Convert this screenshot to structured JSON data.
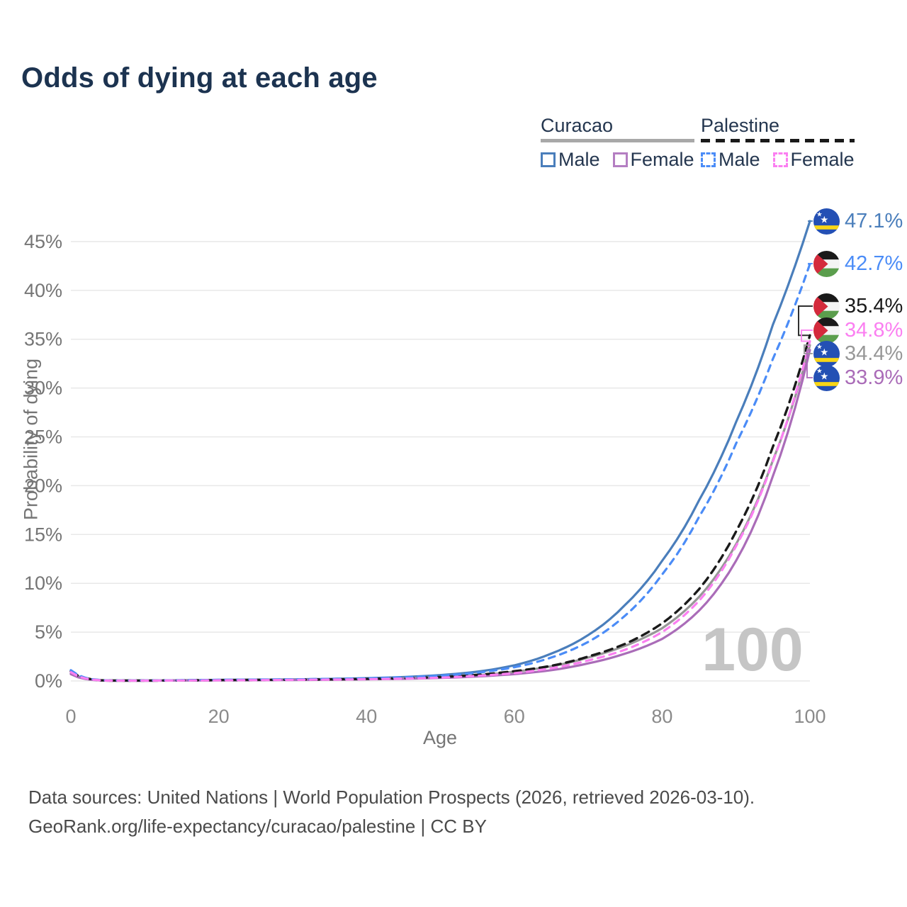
{
  "title": "Odds of dying at each age",
  "legend": {
    "groups": [
      {
        "title": "Curacao",
        "line_style": "solid",
        "line_color": "#a8a8a8",
        "items": [
          {
            "label": "Male",
            "color": "#4a7ebb",
            "dashed": false
          },
          {
            "label": "Female",
            "color": "#b47ec2",
            "dashed": false
          }
        ]
      },
      {
        "title": "Palestine",
        "line_style": "dashed",
        "line_color": "#1a1a1a",
        "items": [
          {
            "label": "Male",
            "color": "#4b8cf7",
            "dashed": true
          },
          {
            "label": "Female",
            "color": "#fb7ff1",
            "dashed": true
          }
        ]
      }
    ]
  },
  "chart_data": {
    "type": "line",
    "title": "Odds of dying at each age",
    "xlabel": "Age",
    "ylabel": "Probability of dying",
    "xlim": [
      0,
      100
    ],
    "ylim": [
      0,
      47.5
    ],
    "xticks": [
      0,
      20,
      40,
      60,
      80,
      100
    ],
    "yticks_percent": [
      0,
      5,
      10,
      15,
      20,
      25,
      30,
      35,
      40,
      45
    ],
    "grid": "horizontal-only",
    "hovered_age_label": "100",
    "ages": [
      0,
      5,
      10,
      15,
      20,
      25,
      30,
      35,
      40,
      45,
      50,
      55,
      60,
      65,
      70,
      75,
      80,
      85,
      90,
      95,
      100
    ],
    "series": [
      {
        "name": "Curacao Male",
        "country": "Curacao",
        "sex": "Male",
        "flag": "curacao",
        "color": "#4a7ebb",
        "dashed": false,
        "end_label": "47.1%",
        "end_value": 47.1,
        "values": [
          0.85,
          0.04,
          0.04,
          0.07,
          0.11,
          0.13,
          0.16,
          0.21,
          0.28,
          0.4,
          0.6,
          0.95,
          1.6,
          2.8,
          4.7,
          7.8,
          12.3,
          18.5,
          26.5,
          36.5,
          47.1
        ]
      },
      {
        "name": "Palestine Male",
        "country": "Palestine",
        "sex": "Male",
        "flag": "palestine",
        "color": "#4b8cf7",
        "dashed": true,
        "end_label": "42.7%",
        "end_value": 42.7,
        "values": [
          1.1,
          0.05,
          0.05,
          0.08,
          0.12,
          0.14,
          0.17,
          0.21,
          0.27,
          0.38,
          0.55,
          0.85,
          1.4,
          2.4,
          4.0,
          6.7,
          10.9,
          16.8,
          24.3,
          33.0,
          42.7
        ]
      },
      {
        "name": "Palestine Both sexes",
        "country": "Palestine",
        "sex": "Both",
        "flag": "palestine",
        "color": "#1a1a1a",
        "dashed": true,
        "end_label": "35.4%",
        "end_value": 35.4,
        "values": [
          1.0,
          0.04,
          0.04,
          0.06,
          0.09,
          0.11,
          0.13,
          0.16,
          0.21,
          0.28,
          0.4,
          0.63,
          1.0,
          1.55,
          2.5,
          3.8,
          5.9,
          9.4,
          15.3,
          24.0,
          35.4
        ]
      },
      {
        "name": "Palestine Female",
        "country": "Palestine",
        "sex": "Female",
        "flag": "palestine",
        "color": "#fb7ff1",
        "dashed": true,
        "end_label": "34.8%",
        "end_value": 34.8,
        "values": [
          0.9,
          0.035,
          0.035,
          0.05,
          0.07,
          0.09,
          0.11,
          0.14,
          0.18,
          0.24,
          0.34,
          0.52,
          0.8,
          1.3,
          2.1,
          3.2,
          5.0,
          8.2,
          13.8,
          22.5,
          34.8
        ]
      },
      {
        "name": "Curacao Both sexes",
        "country": "Curacao",
        "sex": "Both",
        "flag": "curacao",
        "color": "#979797",
        "dashed": false,
        "end_label": "34.4%",
        "end_value": 34.4,
        "values": [
          0.75,
          0.035,
          0.035,
          0.055,
          0.08,
          0.1,
          0.12,
          0.15,
          0.2,
          0.27,
          0.38,
          0.58,
          0.95,
          1.5,
          2.4,
          3.6,
          5.4,
          8.6,
          14.0,
          22.6,
          34.4
        ]
      },
      {
        "name": "Curacao Female",
        "country": "Curacao",
        "sex": "Female",
        "flag": "curacao",
        "color": "#aa6cb8",
        "dashed": false,
        "end_label": "33.9%",
        "end_value": 33.9,
        "values": [
          0.7,
          0.03,
          0.03,
          0.045,
          0.06,
          0.08,
          0.1,
          0.13,
          0.17,
          0.22,
          0.31,
          0.46,
          0.7,
          1.1,
          1.8,
          2.8,
          4.3,
          7.2,
          12.3,
          21.0,
          33.9
        ]
      }
    ]
  },
  "footer": {
    "line1": "Data sources: United Nations | World Population Prospects (2026, retrieved 2026-03-10).",
    "line2": "GeoRank.org/life-expectancy/curacao/palestine | CC BY"
  }
}
